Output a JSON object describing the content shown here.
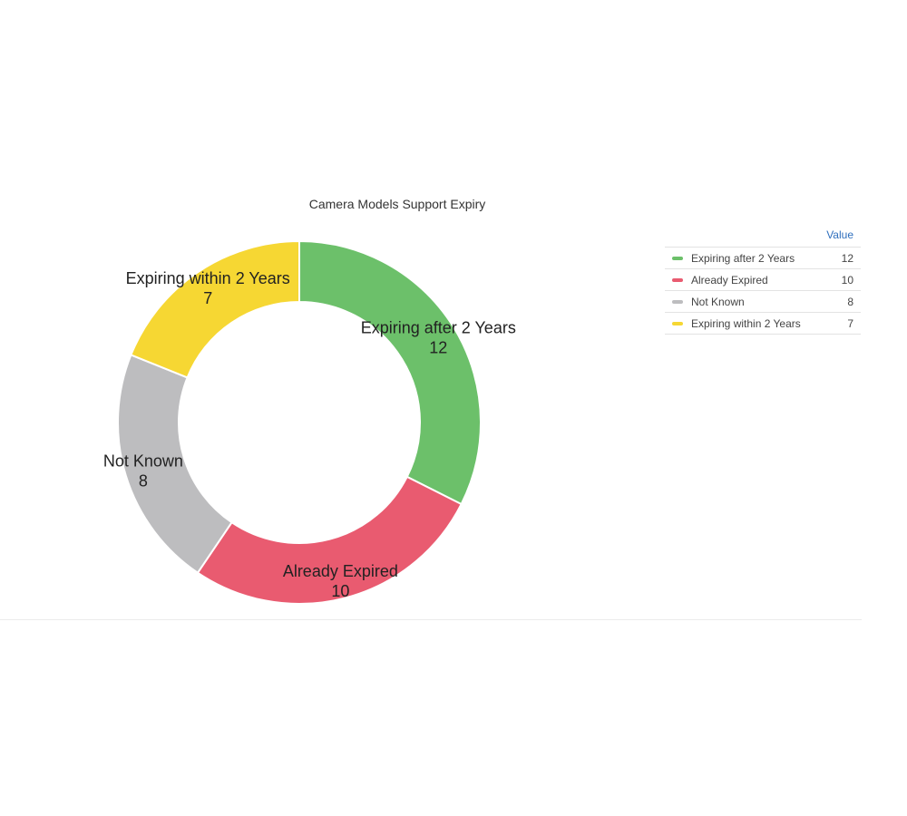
{
  "chart_data": {
    "type": "pie",
    "donut": true,
    "title": "Camera Models Support Expiry",
    "legend_placement": "right",
    "legend_header": "Value",
    "slices": [
      {
        "label": "Expiring after 2 Years",
        "value": 12,
        "color": "#6cc06a"
      },
      {
        "label": "Already Expired",
        "value": 10,
        "color": "#e95b70"
      },
      {
        "label": "Not Known",
        "value": 8,
        "color": "#bdbdbf"
      },
      {
        "label": "Expiring within 2 Years",
        "value": 7,
        "color": "#f6d733"
      }
    ]
  }
}
